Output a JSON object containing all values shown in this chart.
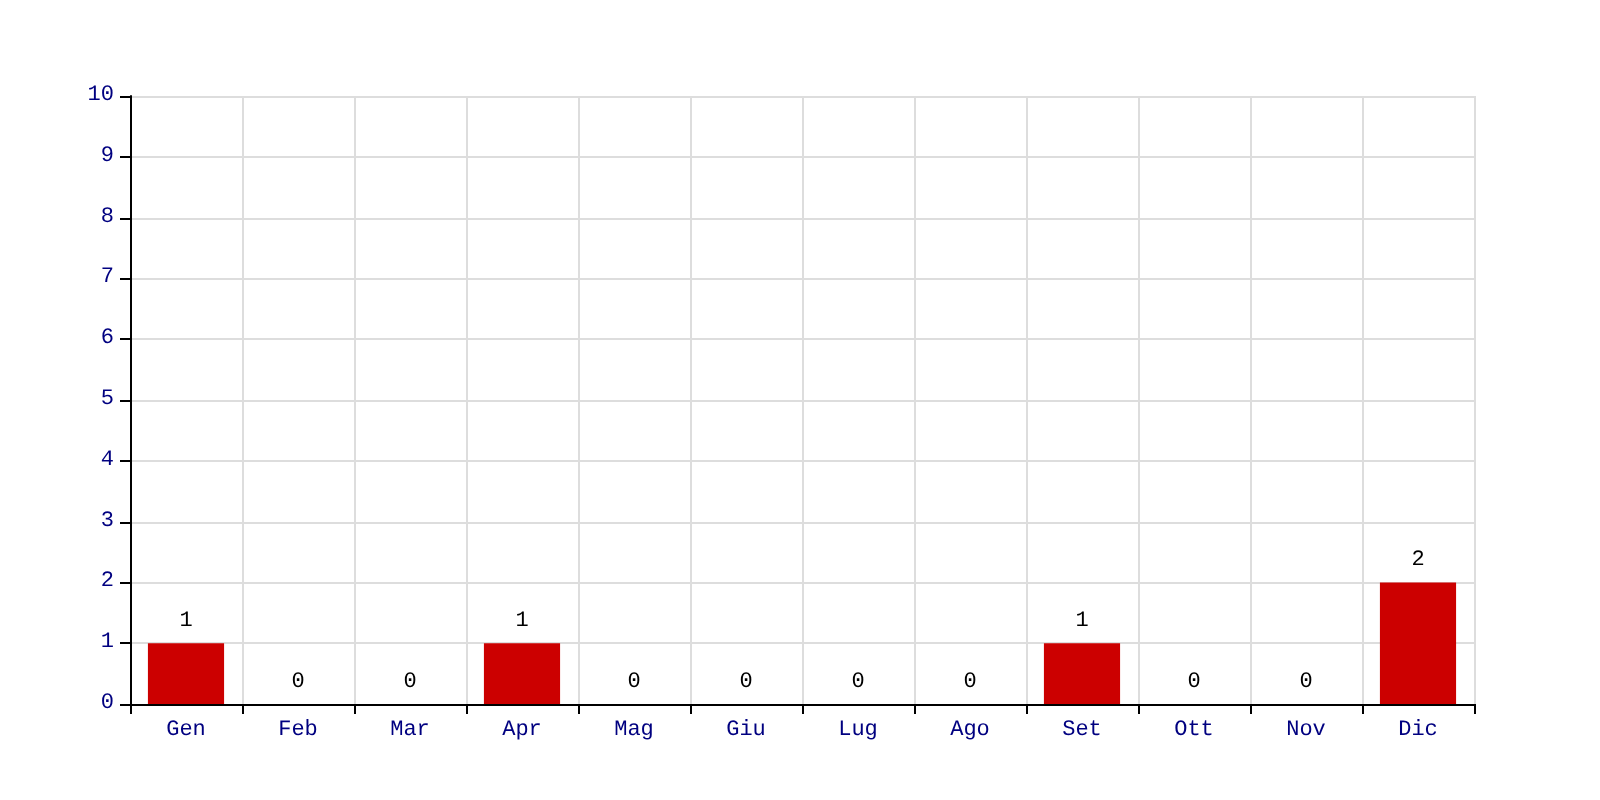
{
  "chart_data": {
    "type": "bar",
    "categories": [
      "Gen",
      "Feb",
      "Mar",
      "Apr",
      "Mag",
      "Giu",
      "Lug",
      "Ago",
      "Set",
      "Ott",
      "Nov",
      "Dic"
    ],
    "values": [
      1,
      0,
      0,
      1,
      0,
      0,
      0,
      0,
      1,
      0,
      0,
      2
    ],
    "color": "#cc0000",
    "ylim": [
      0,
      10
    ],
    "yticks": [
      0,
      1,
      2,
      3,
      4,
      5,
      6,
      7,
      8,
      9,
      10
    ],
    "grid": true,
    "data_labels": true
  }
}
